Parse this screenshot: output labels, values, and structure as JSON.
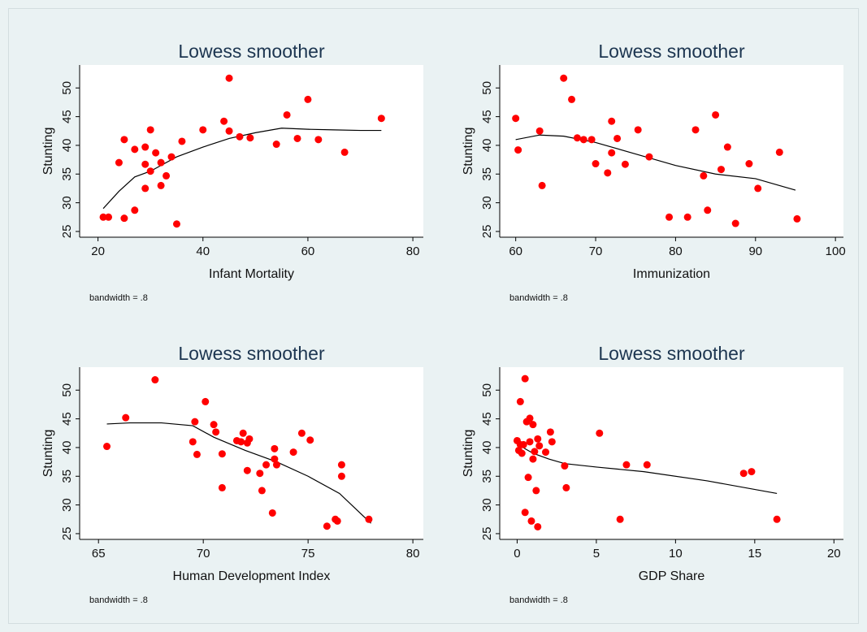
{
  "chart_data": [
    {
      "type": "scatter",
      "title": "Lowess smoother",
      "x_label": "Infant Mortality",
      "y_label": "Stunting",
      "note": "bandwidth = .8",
      "color": "#ff0000",
      "line_color": "#000000",
      "x": [
        21,
        22,
        24,
        25,
        25,
        27,
        27,
        29,
        29,
        29,
        30,
        30,
        31,
        32,
        32,
        33,
        34,
        35,
        36,
        40,
        44,
        45,
        45,
        47,
        49,
        54,
        56,
        58,
        60,
        62,
        67,
        74
      ],
      "values": [
        27.5,
        27.5,
        37,
        27.3,
        41,
        39.3,
        28.7,
        39.7,
        36.7,
        32.5,
        35.5,
        42.7,
        38.7,
        33,
        37,
        34.7,
        38,
        26.3,
        40.7,
        42.7,
        44.2,
        51.7,
        42.5,
        41.5,
        41.3,
        40.2,
        45.3,
        41.2,
        48,
        41,
        38.8,
        44.7
      ],
      "lowess": {
        "x": [
          21,
          24,
          27,
          30,
          35,
          40,
          45,
          50,
          55,
          60,
          65,
          70,
          74
        ],
        "values": [
          29,
          32,
          34.5,
          35.5,
          38,
          39.7,
          41.2,
          42.2,
          43,
          42.8,
          42.7,
          42.6,
          42.6
        ]
      },
      "xlim": [
        16.5,
        82
      ],
      "ylim": [
        24,
        54
      ],
      "xticks": [
        20,
        40,
        60,
        80
      ],
      "yticks": [
        25,
        30,
        35,
        40,
        45,
        50
      ]
    },
    {
      "type": "scatter",
      "title": "Lowess smoother",
      "x_label": "Immunization",
      "y_label": "Stunting",
      "note": "bandwidth = .8",
      "color": "#ff0000",
      "line_color": "#000000",
      "x": [
        60,
        60.3,
        63,
        63.3,
        66,
        67,
        67.7,
        68.5,
        69.5,
        70,
        71.5,
        72,
        72,
        72.7,
        73.7,
        75.3,
        76.7,
        79.2,
        81.5,
        82.5,
        83.5,
        84,
        85,
        85.7,
        86.5,
        87.5,
        89.2,
        90.3,
        93,
        95.2
      ],
      "values": [
        44.7,
        39.2,
        42.5,
        33,
        51.7,
        48,
        41.3,
        41,
        41,
        36.8,
        35.2,
        38.7,
        44.2,
        41.2,
        36.7,
        42.7,
        38,
        27.5,
        27.5,
        42.7,
        34.7,
        28.7,
        45.3,
        35.8,
        39.7,
        26.4,
        36.8,
        32.5,
        38.8,
        27.2
      ],
      "lowess": {
        "x": [
          60,
          63,
          66,
          70,
          75,
          80,
          85,
          90,
          95
        ],
        "values": [
          41,
          41.8,
          41.6,
          40.5,
          38.5,
          36.5,
          35,
          34.2,
          32.2
        ]
      },
      "xlim": [
        58,
        101
      ],
      "ylim": [
        24,
        54
      ],
      "xticks": [
        60,
        70,
        80,
        90,
        100
      ],
      "yticks": [
        25,
        30,
        35,
        40,
        45,
        50
      ]
    },
    {
      "type": "scatter",
      "title": "Lowess smoother",
      "x_label": "Human Development Index",
      "y_label": "Stunting",
      "note": "bandwidth = .8",
      "color": "#ff0000",
      "line_color": "#000000",
      "x": [
        65.4,
        66.3,
        67.7,
        69.5,
        69.6,
        69.7,
        70.1,
        70.5,
        70.6,
        70.9,
        70.9,
        71.6,
        71.8,
        71.9,
        72.1,
        72.1,
        72.2,
        72.7,
        72.8,
        73,
        73.3,
        73.4,
        73.4,
        73.5,
        74.3,
        74.7,
        75.1,
        75.9,
        76.3,
        76.4,
        76.6,
        76.6,
        77.9
      ],
      "values": [
        40.2,
        45.2,
        51.8,
        41,
        44.5,
        38.8,
        48,
        44,
        42.7,
        38.9,
        33,
        41.2,
        41,
        42.5,
        36,
        40.8,
        41.5,
        35.5,
        32.5,
        37,
        28.6,
        39.8,
        38,
        37,
        39.2,
        42.5,
        41.3,
        26.3,
        27.5,
        27.2,
        37,
        35,
        27.5
      ],
      "lowess": {
        "x": [
          65.4,
          66.5,
          68,
          69.5,
          70.5,
          72,
          73.5,
          75,
          76.5,
          78
        ],
        "values": [
          44.1,
          44.3,
          44.3,
          43.8,
          41.8,
          39.5,
          37.5,
          35,
          32,
          26.8
        ]
      },
      "xlim": [
        64.1,
        80.5
      ],
      "ylim": [
        24,
        54
      ],
      "xticks": [
        65,
        70,
        75,
        80
      ],
      "yticks": [
        25,
        30,
        35,
        40,
        45,
        50
      ]
    },
    {
      "type": "scatter",
      "title": "Lowess smoother",
      "x_label": "GDP Share",
      "y_label": "Stunting",
      "note": "bandwidth = .8",
      "color": "#ff0000",
      "line_color": "#000000",
      "x": [
        0,
        0.1,
        0.2,
        0.2,
        0.3,
        0.4,
        0.5,
        0.5,
        0.6,
        0.7,
        0.8,
        0.8,
        0.9,
        1,
        1,
        1.1,
        1.2,
        1.3,
        1.3,
        1.4,
        1.8,
        2.1,
        2.2,
        3,
        3.1,
        5.2,
        6.5,
        6.9,
        8.2,
        14.3,
        14.8,
        16.4
      ],
      "values": [
        41.2,
        39.5,
        48,
        40.5,
        39,
        40.5,
        28.7,
        52,
        44.5,
        34.8,
        45.1,
        41,
        27.2,
        44,
        38,
        39.3,
        32.5,
        26.2,
        41.5,
        40.3,
        39.2,
        42.7,
        41,
        36.8,
        33,
        42.5,
        27.5,
        37,
        37,
        35.5,
        35.8,
        27.5
      ],
      "lowess": {
        "x": [
          0,
          0.5,
          1,
          2,
          3,
          5,
          8,
          12,
          16.4
        ],
        "values": [
          40.8,
          39.8,
          39,
          38,
          37.2,
          36.6,
          35.8,
          34.2,
          32
        ]
      },
      "xlim": [
        -1.1,
        20.6
      ],
      "ylim": [
        24,
        54
      ],
      "xticks": [
        0,
        5,
        10,
        15,
        20
      ],
      "yticks": [
        25,
        30,
        35,
        40,
        45,
        50
      ]
    }
  ]
}
